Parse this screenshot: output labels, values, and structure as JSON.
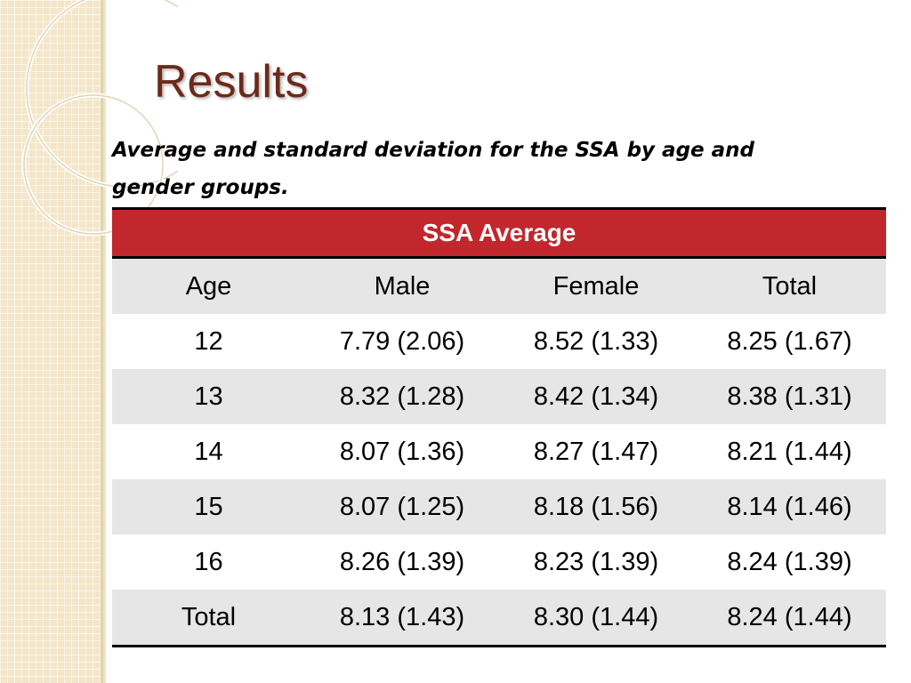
{
  "slide": {
    "title": "Results",
    "caption": "Average and standard deviation for the SSA by age and gender groups."
  },
  "table": {
    "group_header": "SSA Average",
    "columns": [
      "Age",
      "Male",
      "Female",
      "Total"
    ],
    "rows": [
      [
        "12",
        "7.79 (2.06)",
        "8.52 (1.33)",
        "8.25 (1.67)"
      ],
      [
        "13",
        "8.32 (1.28)",
        "8.42 (1.34)",
        "8.38 (1.31)"
      ],
      [
        "14",
        "8.07 (1.36)",
        "8.27 (1.47)",
        "8.21 (1.44)"
      ],
      [
        "15",
        "8.07 (1.25)",
        "8.18 (1.56)",
        "8.14 (1.46)"
      ],
      [
        "16",
        "8.26 (1.39)",
        "8.23 (1.39)",
        "8.24 (1.39)"
      ],
      [
        "Total",
        "8.13 (1.43)",
        "8.30 (1.44)",
        "8.24 (1.44)"
      ]
    ]
  },
  "colors": {
    "title": "#6b2a1a",
    "header_fill": "#c1272d",
    "band_fill": "#e6e6e6",
    "side_band": "#f3e6c9"
  }
}
